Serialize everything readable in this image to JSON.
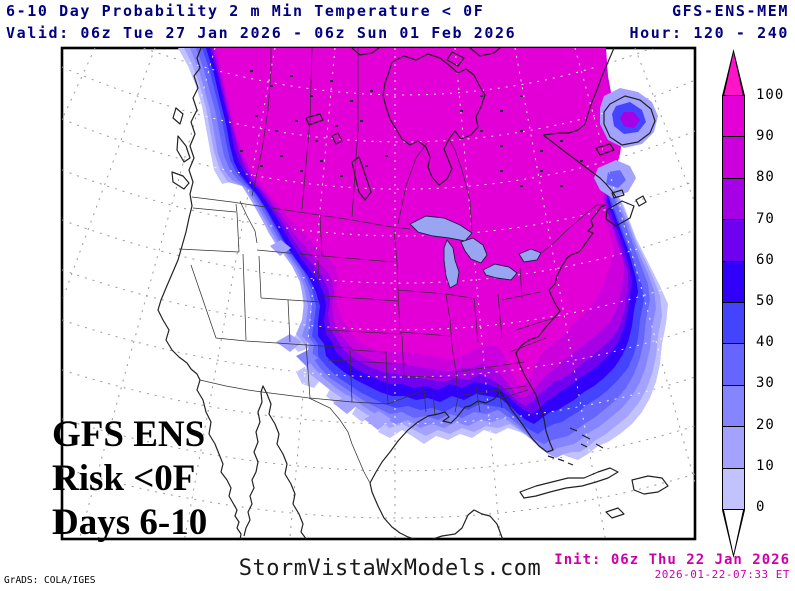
{
  "header": {
    "title": "6-10 Day Probability 2 m Min Temperature < 0F",
    "model": "GFS-ENS-MEM",
    "valid": "Valid: 06z Tue 27 Jan 2026 - 06z Sun 01 Feb 2026",
    "hour": "Hour: 120 - 240"
  },
  "overlay": {
    "line1": "GFS ENS",
    "line2": "Risk <0F",
    "line3": "Days 6-10"
  },
  "footer": {
    "credit": "GrADS: COLA/IGES",
    "site": "StormVistaWxModels.com",
    "init": "Init: 06z Thu 22 Jan 2026",
    "generated": "2026-01-22-07:33 ET"
  },
  "colors": {
    "header_text": "#000080",
    "init_text": "#cc00aa",
    "site_text": "#1a1a1a"
  },
  "colorbar": {
    "units": "",
    "ticks": [
      100,
      90,
      80,
      70,
      60,
      50,
      40,
      30,
      20,
      10,
      0
    ],
    "bands": [
      {
        "range": "90-100",
        "color": "#e300d7"
      },
      {
        "range": "80-90",
        "color": "#cb00dd"
      },
      {
        "range": "70-80",
        "color": "#a500e6"
      },
      {
        "range": "60-70",
        "color": "#7000f0"
      },
      {
        "range": "50-60",
        "color": "#3000fa"
      },
      {
        "range": "40-50",
        "color": "#4444ff"
      },
      {
        "range": "30-40",
        "color": "#6666ff"
      },
      {
        "range": "20-30",
        "color": "#8585ff"
      },
      {
        "range": "10-20",
        "color": "#a3a3ff"
      },
      {
        "range": "0-10",
        "color": "#c2c2ff"
      }
    ],
    "over_color": "#ff14c8",
    "under_color": "#ffffff"
  }
}
